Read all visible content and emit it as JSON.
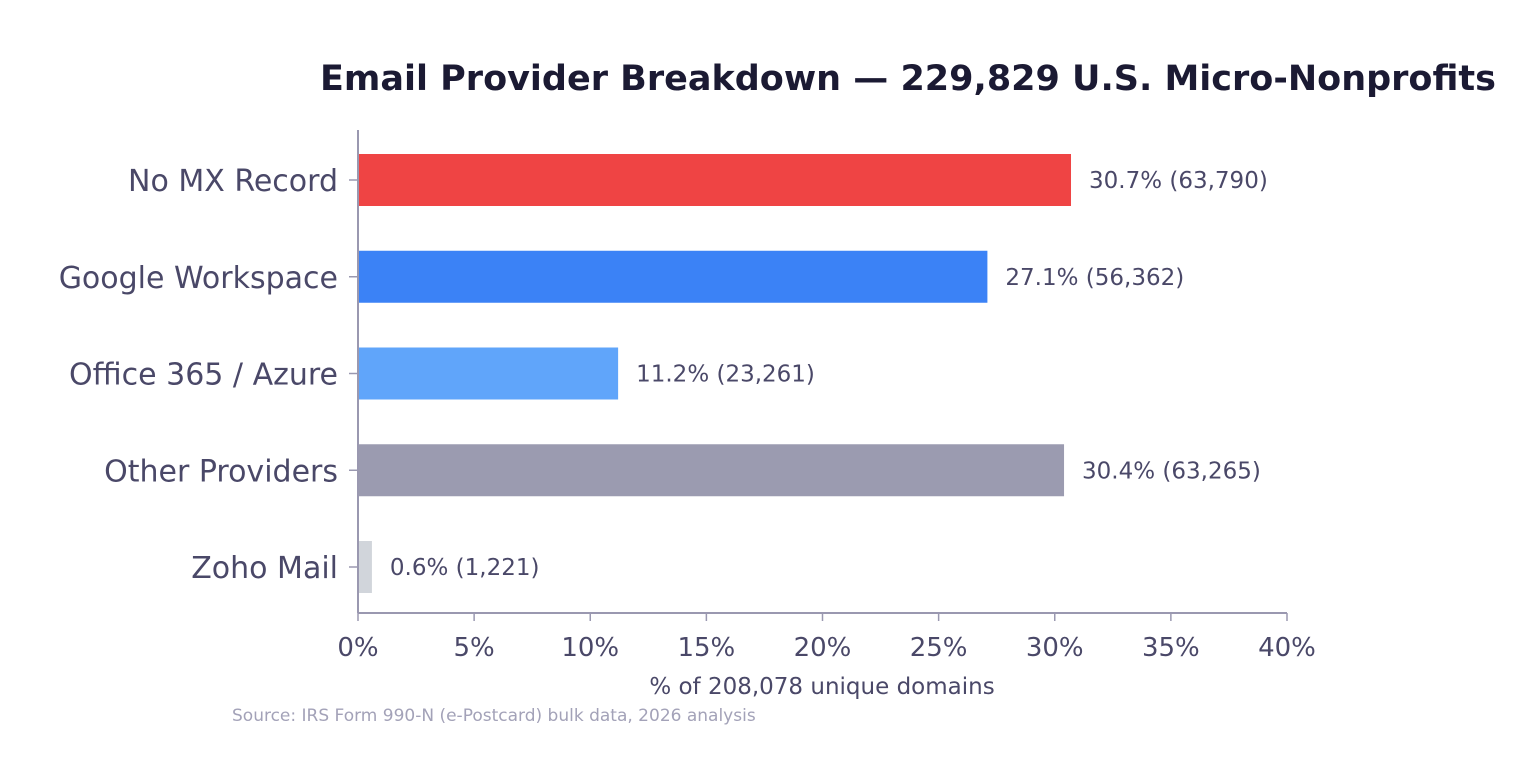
{
  "chart_data": {
    "type": "bar",
    "orientation": "horizontal",
    "title": "Email Provider Breakdown — 229,829 U.S. Micro-Nonprofits",
    "xlabel": "% of 208,078 unique domains",
    "ylabel": "",
    "source": "Source: IRS Form 990-N (e-Postcard) bulk data, 2026 analysis",
    "xlim": [
      0,
      40
    ],
    "xticks": [
      "0%",
      "5%",
      "10%",
      "15%",
      "20%",
      "25%",
      "30%",
      "35%",
      "40%"
    ],
    "xtick_values": [
      0,
      5,
      10,
      15,
      20,
      25,
      30,
      35,
      40
    ],
    "grid": false,
    "categories": [
      "No MX Record",
      "Google Workspace",
      "Office 365 / Azure",
      "Other Providers",
      "Zoho Mail"
    ],
    "values": [
      30.7,
      27.1,
      11.2,
      30.4,
      0.6
    ],
    "counts": [
      63790,
      56362,
      23261,
      63265,
      1221
    ],
    "data_labels": [
      "30.7%  (63,790)",
      "27.1%  (56,362)",
      "11.2%  (23,261)",
      "30.4%  (63,265)",
      "0.6%  (1,221)"
    ],
    "colors": [
      "#ef4444",
      "#3b82f6",
      "#60a5fa",
      "#9b9bb0",
      "#d1d5db"
    ]
  }
}
